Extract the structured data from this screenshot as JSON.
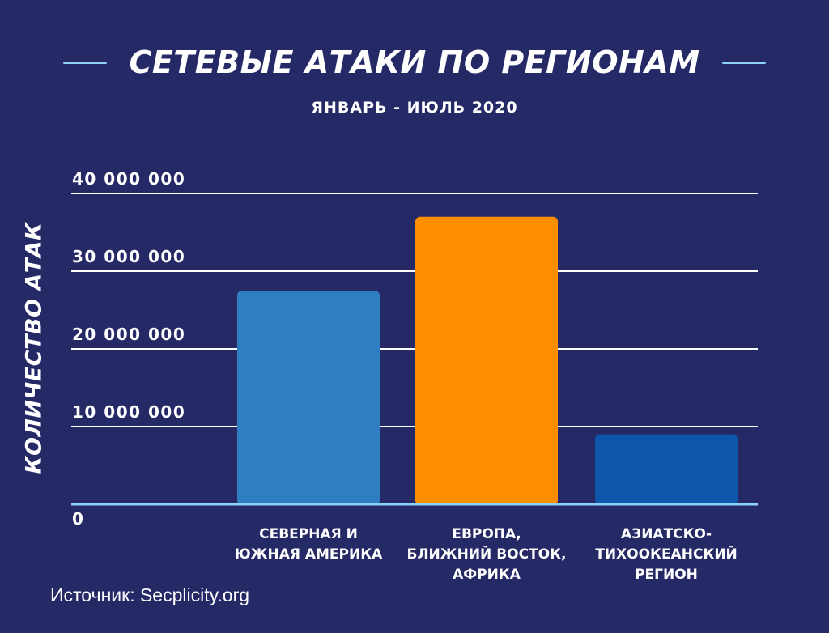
{
  "chart_data": {
    "type": "bar",
    "title": "СЕТЕВЫЕ АТАКИ ПО РЕГИОНАМ",
    "subtitle": "ЯНВАРЬ - ИЮЛЬ 2020",
    "ylabel": "КОЛИЧЕСТВО АТАК",
    "xlabel": "",
    "categories": [
      "СЕВЕРНАЯ И\nЮЖНАЯ АМЕРИКА",
      "ЕВРОПА,\nБЛИЖНИЙ ВОСТОК,\nАФРИКА",
      "АЗИАТСКО-\nТИХООКЕАНСКИЙ\nРЕГИОН"
    ],
    "values": [
      27500000,
      37000000,
      9000000
    ],
    "colors": [
      "#2e7ec1",
      "#ff8d00",
      "#0d56ab"
    ],
    "ylim": [
      0,
      40000000
    ],
    "yticks": [
      0,
      10000000,
      20000000,
      30000000,
      40000000
    ],
    "ytick_labels": [
      "0",
      "10 000 000",
      "20 000 000",
      "30 000 000",
      "40 000 000"
    ],
    "grid": true,
    "legend": "none"
  },
  "source": "Источник: Secplicity.org",
  "colors": {
    "background": "#252a67",
    "gridline": "#ffffff",
    "baseline": "#8fd3f4",
    "accent": "#8fd3f4"
  }
}
